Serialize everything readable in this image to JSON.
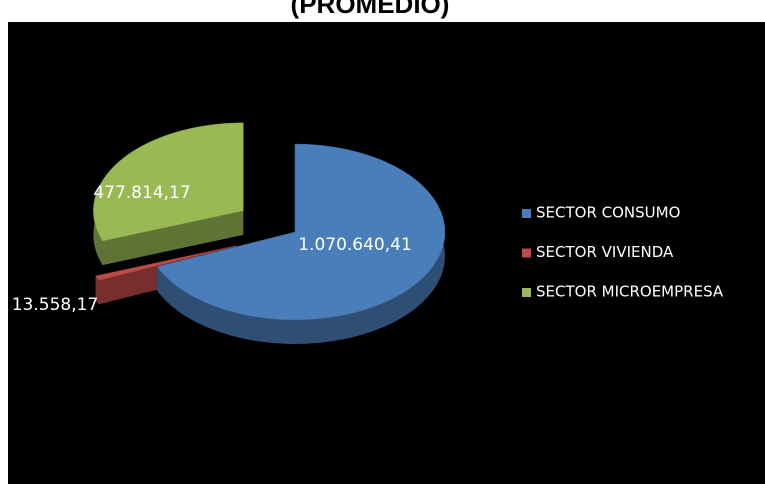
{
  "chart_data": {
    "type": "pie3d",
    "title": "(PROMEDIO)",
    "categories": [
      "SECTOR CONSUMO",
      "SECTOR VIVIENDA",
      "SECTOR MICROEMPRESA"
    ],
    "values": [
      1070640.41,
      13558.17,
      477814.17
    ],
    "value_labels": [
      "1.070.640,41",
      "13.558,17",
      "477.814,17"
    ],
    "colors": [
      "#4a7ebb",
      "#be4b48",
      "#98b954"
    ],
    "legend": "right"
  }
}
